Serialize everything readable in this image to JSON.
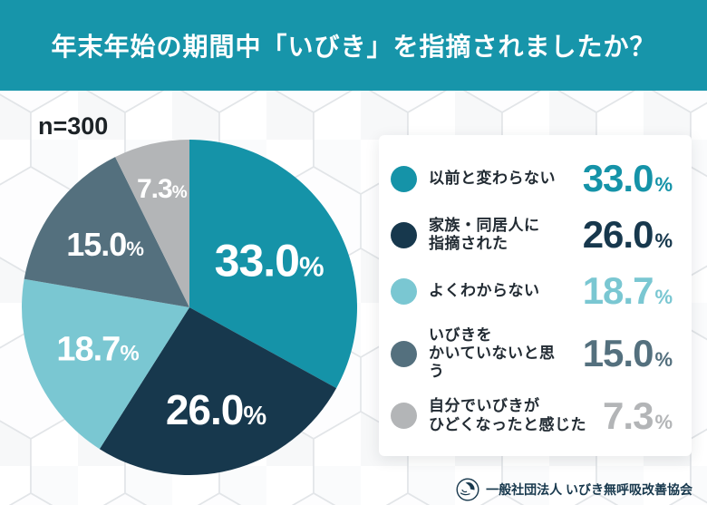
{
  "header": {
    "title": "年末年始の期間中「いびき」を指摘されましたか？"
  },
  "sample_size": "n=300",
  "chart_data": {
    "type": "pie",
    "title": "年末年始の期間中「いびき」を指摘されましたか？",
    "sample_size": "n=300",
    "start_angle_deg": 0,
    "direction": "clockwise",
    "total": 100,
    "legend_position": "right",
    "slices": [
      {
        "label": "以前と変わらない",
        "value": 33.0,
        "display": "33.0%",
        "color": "#1593a8",
        "legend_label_lines": [
          "以前と変わらない"
        ]
      },
      {
        "label": "家族・同居人に指摘された",
        "value": 26.0,
        "display": "26.0%",
        "color": "#17384d",
        "legend_label_lines": [
          "家族・同居人に",
          "指摘された"
        ]
      },
      {
        "label": "よくわからない",
        "value": 18.7,
        "display": "18.7%",
        "color": "#7ac7d2",
        "legend_label_lines": [
          "よくわからない"
        ]
      },
      {
        "label": "いびきをかいていないと思う",
        "value": 15.0,
        "display": "15.0%",
        "color": "#54707e",
        "legend_label_lines": [
          "いびきを",
          "かいていないと思う"
        ]
      },
      {
        "label": "自分でいびきがひどくなったと感じた",
        "value": 7.3,
        "display": "7.3%",
        "color": "#b3b5b7",
        "legend_label_lines": [
          "自分でいびきが",
          "ひどくなったと感じた"
        ]
      }
    ]
  },
  "footer": {
    "organization": "一般社団法人 いびき無呼吸改善協会",
    "logo_icon": "sleeping-person-icon"
  },
  "colors": {
    "header_bg": "#1795aa",
    "background": "#eef0f1",
    "card_bg": "#ffffff",
    "title_text": "#ffffff",
    "label_text": "#222b33",
    "sample_text": "#1c2226"
  }
}
